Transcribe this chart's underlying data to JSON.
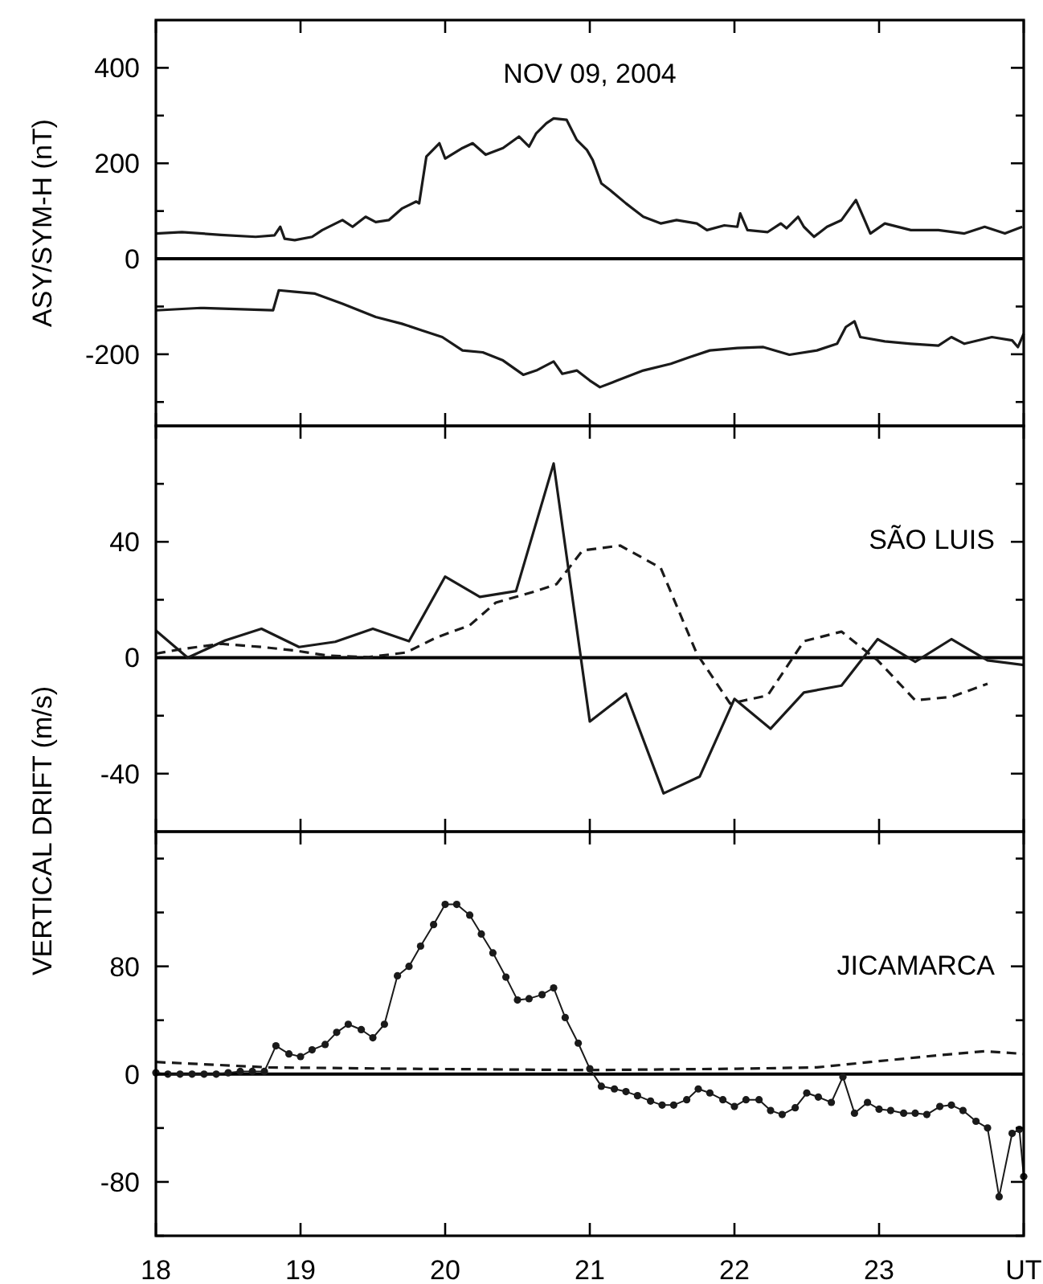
{
  "chart_data": [
    {
      "type": "line",
      "title": "NOV 09, 2004",
      "ylabel": "ASY/SYM-H (nT)",
      "xlim": [
        18,
        24
      ],
      "xticks": [
        {
          "value": 18,
          "label": null
        },
        {
          "value": 19,
          "label": null
        },
        {
          "value": 20,
          "label": null
        },
        {
          "value": 21,
          "label": null
        },
        {
          "value": 22,
          "label": null
        },
        {
          "value": 23,
          "label": null
        },
        {
          "value": 24,
          "label": null
        }
      ],
      "ylim": [
        -350,
        500
      ],
      "yticks": [
        {
          "value": -300,
          "label": null
        },
        -200,
        {
          "value": -100,
          "label": null
        },
        0,
        {
          "value": 100,
          "label": null
        },
        200,
        {
          "value": 300,
          "label": null
        },
        400
      ],
      "tick_labels": "y",
      "grid": false,
      "marker": "none",
      "line_style": "solid",
      "ref_lines": [
        {
          "axis": "y",
          "value": 0,
          "color": "#000000"
        }
      ],
      "series": [
        {
          "color": "#1a1a1a",
          "x": [
            18,
            18.18,
            18.45,
            18.69,
            18.82,
            18.86,
            18.89,
            18.96,
            19.08,
            19.15,
            19.29,
            19.36,
            19.45,
            19.52,
            19.61,
            19.7,
            19.8,
            19.82,
            19.87,
            19.96,
            20.0,
            20.12,
            20.19,
            20.28,
            20.4,
            20.51,
            20.58,
            20.63,
            20.7,
            20.75,
            20.84,
            20.91,
            20.98,
            21.02,
            21.08,
            21.14,
            21.25,
            21.37,
            21.49,
            21.6,
            21.74,
            21.81,
            21.93,
            22.02,
            22.04,
            22.09,
            22.23,
            22.32,
            22.36,
            22.44,
            22.48,
            22.55,
            22.64,
            22.74,
            22.84,
            22.9,
            22.94,
            23.04,
            23.22,
            23.41,
            23.59,
            23.73,
            23.87,
            23.99
          ],
          "values": [
            53,
            56,
            50,
            46,
            49,
            67,
            42,
            39,
            46,
            60,
            81,
            67,
            88,
            77,
            81,
            105,
            120,
            116,
            214,
            242,
            210,
            232,
            242,
            218,
            232,
            256,
            235,
            263,
            284,
            294,
            291,
            249,
            228,
            207,
            158,
            144,
            116,
            88,
            74,
            81,
            74,
            60,
            70,
            67,
            95,
            60,
            56,
            74,
            64,
            88,
            67,
            46,
            67,
            81,
            123,
            81,
            53,
            74,
            60,
            60,
            53,
            67,
            53,
            67
          ]
        },
        {
          "color": "#1a1a1a",
          "x": [
            18,
            18.31,
            18.81,
            18.85,
            18.96,
            19.1,
            19.29,
            19.52,
            19.7,
            19.84,
            19.98,
            20.12,
            20.26,
            20.4,
            20.54,
            20.63,
            20.75,
            20.81,
            20.91,
            21.0,
            21.07,
            21.19,
            21.37,
            21.56,
            21.69,
            21.83,
            22.02,
            22.2,
            22.38,
            22.57,
            22.71,
            22.77,
            22.83,
            22.87,
            23.04,
            23.22,
            23.41,
            23.5,
            23.59,
            23.78,
            23.92,
            23.96,
            24.0
          ],
          "values": [
            -108,
            -103,
            -108,
            -66,
            -69,
            -73,
            -94,
            -122,
            -136,
            -150,
            -164,
            -192,
            -196,
            -213,
            -243,
            -234,
            -215,
            -241,
            -234,
            -255,
            -269,
            -255,
            -234,
            -220,
            -206,
            -192,
            -187,
            -185,
            -201,
            -192,
            -178,
            -143,
            -131,
            -164,
            -173,
            -178,
            -182,
            -164,
            -178,
            -164,
            -171,
            -185,
            -157
          ]
        }
      ]
    },
    {
      "type": "line",
      "title": "SÃO LUIS",
      "ylabel": "VERTICAL DRIFT (m/s)",
      "xlim": [
        18,
        24
      ],
      "xticks": [
        {
          "value": 18,
          "label": null
        },
        {
          "value": 19,
          "label": null
        },
        {
          "value": 20,
          "label": null
        },
        {
          "value": 21,
          "label": null
        },
        {
          "value": 22,
          "label": null
        },
        {
          "value": 23,
          "label": null
        },
        {
          "value": 24,
          "label": null
        }
      ],
      "ylim": [
        -60,
        80
      ],
      "yticks": [
        -40,
        {
          "value": -20,
          "label": null
        },
        0,
        {
          "value": 20,
          "label": null
        },
        40,
        {
          "value": 60,
          "label": null
        }
      ],
      "tick_labels": "y",
      "grid": false,
      "marker": "none",
      "ref_lines": [
        {
          "axis": "y",
          "value": 0,
          "color": "#000000"
        }
      ],
      "series": [
        {
          "color": "#1a1a1a",
          "line_style": "solid",
          "x": [
            18,
            18.22,
            18.48,
            18.73,
            18.99,
            19.24,
            19.5,
            19.75,
            20.0,
            20.24,
            20.49,
            20.75,
            21.0,
            21.25,
            21.51,
            21.76,
            22.0,
            22.25,
            22.48,
            22.74,
            22.99,
            23.25,
            23.5,
            23.75,
            24.0
          ],
          "values": [
            9.4,
            0,
            6,
            10,
            3.7,
            5.5,
            10,
            5.7,
            28,
            21,
            23,
            67,
            -22,
            -12.4,
            -46.8,
            -41,
            -14.2,
            -24.5,
            -12,
            -9.6,
            6.4,
            -1.4,
            6.4,
            -0.9,
            -2.5
          ]
        },
        {
          "color": "#1a1a1a",
          "line_style": "dashed",
          "x": [
            18,
            18.18,
            18.45,
            18.73,
            18.96,
            19.19,
            19.47,
            19.73,
            19.94,
            20.17,
            20.35,
            20.63,
            20.77,
            20.95,
            21.21,
            21.49,
            21.74,
            21.97,
            22.23,
            22.48,
            22.74,
            22.99,
            23.25,
            23.5,
            23.75
          ],
          "values": [
            1.4,
            3,
            4.8,
            3.7,
            2.5,
            0.7,
            0.2,
            1.8,
            7,
            11.2,
            19,
            23,
            25.4,
            37,
            38.7,
            31,
            1.4,
            -15.8,
            -13,
            5.7,
            9,
            -0.9,
            -14.7,
            -13.5,
            -9
          ]
        }
      ]
    },
    {
      "type": "line",
      "title": "JICAMARCA",
      "xlim": [
        18,
        24
      ],
      "xticks": [
        18,
        19,
        20,
        21,
        22,
        23,
        {
          "value": 24,
          "label": "UT"
        }
      ],
      "ylim": [
        -120,
        180
      ],
      "yticks": [
        {
          "value": -120,
          "label": null
        },
        -80,
        {
          "value": -40,
          "label": null
        },
        0,
        {
          "value": 40,
          "label": null
        },
        80,
        {
          "value": 120,
          "label": null
        },
        {
          "value": 160,
          "label": null
        }
      ],
      "grid": false,
      "ref_lines": [
        {
          "axis": "y",
          "value": 0,
          "color": "#000000"
        }
      ],
      "series": [
        {
          "color": "#1a1a1a",
          "line_style": "solid",
          "marker": "circle",
          "x": [
            18,
            18.083,
            18.167,
            18.25,
            18.333,
            18.417,
            18.5,
            18.583,
            18.667,
            18.75,
            18.83,
            18.92,
            19.0,
            19.08,
            19.17,
            19.25,
            19.33,
            19.42,
            19.5,
            19.58,
            19.67,
            19.75,
            19.83,
            19.92,
            20.0,
            20.08,
            20.17,
            20.25,
            20.33,
            20.42,
            20.5,
            20.58,
            20.67,
            20.75,
            20.83,
            20.92,
            21.0,
            21.08,
            21.17,
            21.25,
            21.33,
            21.42,
            21.5,
            21.58,
            21.67,
            21.75,
            21.83,
            21.92,
            22.0,
            22.08,
            22.17,
            22.25,
            22.33,
            22.42,
            22.5,
            22.58,
            22.67,
            22.75,
            22.83,
            22.92,
            23.0,
            23.08,
            23.17,
            23.25,
            23.33,
            23.42,
            23.5,
            23.58,
            23.67,
            23.75,
            23.83,
            23.92,
            23.97,
            24.0
          ],
          "values": [
            1,
            0,
            0,
            0,
            0,
            0,
            1,
            2,
            2,
            2,
            21,
            15,
            13,
            18,
            22,
            31,
            37,
            33,
            27,
            37,
            73,
            80,
            95,
            111,
            126,
            126,
            118,
            104,
            90,
            72,
            55,
            56,
            59,
            64,
            42,
            23,
            4,
            -9,
            -11,
            -13,
            -16,
            -20,
            -23,
            -23,
            -19,
            -11,
            -14,
            -19,
            -24,
            -19,
            -19,
            -27,
            -30,
            -25,
            -14,
            -17,
            -21,
            -2,
            -29,
            -21,
            -26,
            -27,
            -29,
            -29,
            -30,
            -24,
            -23,
            -27,
            -35,
            -40,
            -91,
            -44,
            -41,
            -76
          ]
        },
        {
          "color": "#1a1a1a",
          "line_style": "dashed",
          "marker": "none",
          "x": [
            18,
            18.78,
            19.7,
            21,
            22.02,
            22.57,
            22.94,
            23.41,
            23.73,
            24
          ],
          "values": [
            9,
            5,
            4,
            3,
            4,
            5,
            9,
            14,
            17,
            15
          ]
        }
      ]
    }
  ]
}
